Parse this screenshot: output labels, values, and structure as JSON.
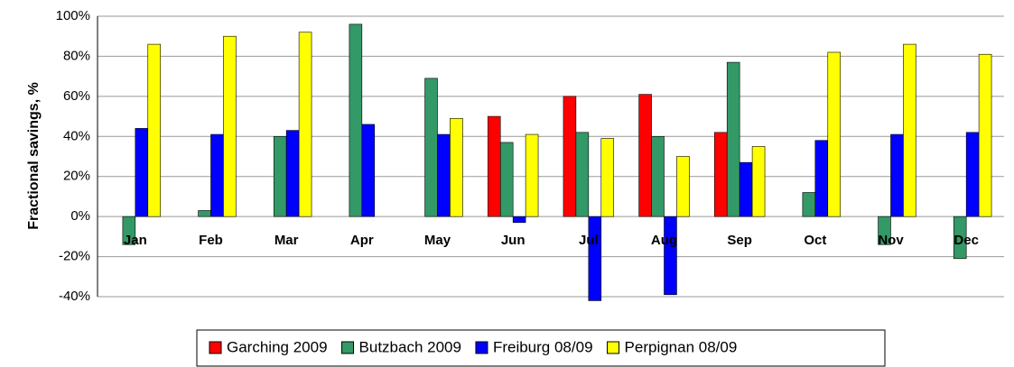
{
  "chart_data": {
    "type": "bar",
    "y_label": "Fractional savings, %",
    "categories": [
      "Jan",
      "Feb",
      "Mar",
      "Apr",
      "May",
      "Jun",
      "Jul",
      "Aug",
      "Sep",
      "Oct",
      "Nov",
      "Dec"
    ],
    "series": [
      {
        "name": "Garching 2009",
        "color": "#ff0000",
        "values": [
          null,
          null,
          null,
          null,
          null,
          50,
          60,
          61,
          42,
          null,
          null,
          null
        ]
      },
      {
        "name": "Butzbach 2009",
        "color": "#339966",
        "values": [
          -14,
          3,
          40,
          96,
          69,
          37,
          42,
          40,
          77,
          12,
          -14,
          -21
        ]
      },
      {
        "name": "Freiburg 08/09",
        "color": "#0000ff",
        "values": [
          44,
          41,
          43,
          46,
          41,
          -3,
          -42,
          -39,
          27,
          38,
          41,
          42
        ]
      },
      {
        "name": "Perpignan 08/09",
        "color": "#ffff00",
        "values": [
          86,
          90,
          92,
          null,
          49,
          41,
          39,
          30,
          35,
          82,
          86,
          81
        ]
      }
    ],
    "ylim": [
      -40,
      100
    ],
    "yticks": [
      {
        "value": -40,
        "label": "-40%"
      },
      {
        "value": -20,
        "label": "-20%"
      },
      {
        "value": 0,
        "label": "0%"
      },
      {
        "value": 20,
        "label": "20%"
      },
      {
        "value": 40,
        "label": "40%"
      },
      {
        "value": 60,
        "label": "60%"
      },
      {
        "value": 80,
        "label": "80%"
      },
      {
        "value": 100,
        "label": "100%"
      }
    ],
    "grid": true
  }
}
